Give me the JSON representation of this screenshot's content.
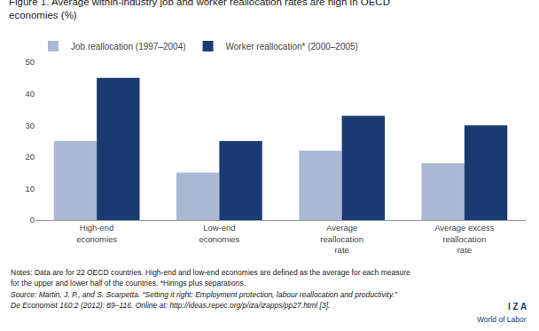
{
  "chart_data": {
    "type": "bar",
    "title": "Figure 1. Average within-industry job and worker reallocation rates are high in OECD\neconomies (%)",
    "categories": [
      "High-end\neconomies",
      "Low-end\neconomies",
      "Average\nreallocation\nrate",
      "Average excess\nreallocation\nrate"
    ],
    "series": [
      {
        "name": "Job reallocation (1997–2004)",
        "color": "#aab8d4",
        "values": [
          25,
          15,
          22,
          18
        ]
      },
      {
        "name": "Worker reallocation* (2000–2005)",
        "color": "#1a3a72",
        "values": [
          45,
          25,
          33,
          30
        ]
      }
    ],
    "ylim": [
      0,
      50
    ],
    "yticks": [
      0,
      10,
      20,
      30,
      40,
      50
    ],
    "grid": false,
    "legend": "top left",
    "annotations": [
      "Notes: Data are for 22 OECD countries. High-end and low-end economies are defined as the average for each measure",
      "for the upper and lower half of the countries. *Hirings plus separations.",
      "Source: Martin, J. P., and S. Scarpetta. “Setting it right: Employment protection, labour reallocation and productivity.”",
      "De Economist 160:2 (2012): 89–116. Online at: http://ideas.repec.org/p/iza/izapps/pp27.html [3].",
      "I Z A",
      "World of Labor"
    ]
  }
}
